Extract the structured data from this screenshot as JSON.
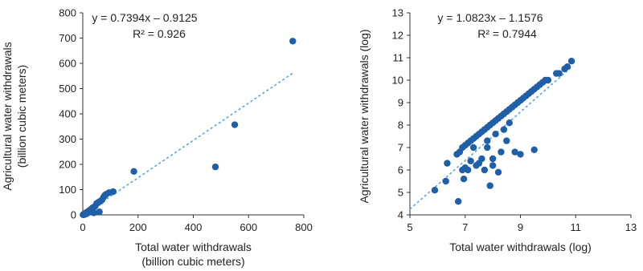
{
  "chart_data": [
    {
      "type": "scatter",
      "xlabel": [
        "Total water withdrawals",
        "(billion cubic meters)"
      ],
      "ylabel": [
        "Agricultural water withdrawals",
        "(billion cubic meters)"
      ],
      "xlim": [
        0,
        800
      ],
      "ylim": [
        0,
        800
      ],
      "xticks": [
        0,
        200,
        400,
        600,
        800
      ],
      "yticks": [
        0,
        100,
        200,
        300,
        400,
        500,
        600,
        700,
        800
      ],
      "grid": false,
      "annotation": {
        "equation": "y = 0.7394x – 0.9125",
        "r2": "R² = 0.926"
      },
      "trendline": {
        "slope": 0.7394,
        "intercept": -0.9125,
        "x_range": [
          0,
          760
        ]
      },
      "colors": {
        "point": "#1f5fa8",
        "trend": "#5aa6d6"
      },
      "x": [
        760,
        550,
        480,
        185,
        110,
        95,
        85,
        80,
        75,
        70,
        65,
        60,
        55,
        50,
        45,
        40,
        35,
        30,
        28,
        25,
        22,
        20,
        18,
        15,
        12,
        10,
        8,
        6,
        5,
        3,
        2,
        1,
        60,
        40,
        30,
        15,
        8,
        5
      ],
      "y": [
        688,
        357,
        190,
        172,
        92,
        88,
        82,
        78,
        70,
        60,
        55,
        52,
        48,
        45,
        35,
        30,
        28,
        22,
        20,
        18,
        15,
        14,
        12,
        10,
        8,
        7,
        5,
        4,
        3,
        2,
        1,
        0.5,
        12,
        8,
        12,
        5,
        2,
        1
      ]
    },
    {
      "type": "scatter",
      "xlabel": [
        "Total water withdrawals (log)"
      ],
      "ylabel": [
        "Agricultural water withdrawals (log)"
      ],
      "xlim": [
        5,
        13
      ],
      "ylim": [
        4,
        13
      ],
      "xticks": [
        5,
        7,
        9,
        11,
        13
      ],
      "yticks": [
        4,
        5,
        6,
        7,
        8,
        9,
        10,
        11,
        12,
        13
      ],
      "grid": false,
      "annotation": {
        "equation": "y = 1.0823x – 1.1576",
        "r2": "R² = 0.7944"
      },
      "trendline": {
        "slope": 1.0823,
        "intercept": -1.1576,
        "x_range": [
          5,
          10.9
        ]
      },
      "colors": {
        "point": "#1f5fa8",
        "trend": "#5aa6d6"
      },
      "x": [
        5.9,
        6.3,
        6.35,
        6.7,
        6.8,
        6.9,
        7.0,
        7.1,
        7.2,
        7.3,
        7.4,
        7.5,
        7.6,
        7.7,
        7.8,
        7.9,
        8.0,
        8.1,
        8.2,
        8.3,
        8.4,
        8.5,
        8.6,
        8.7,
        8.8,
        8.9,
        9.0,
        9.1,
        9.2,
        9.3,
        9.4,
        9.5,
        9.6,
        9.7,
        9.8,
        9.9,
        10.0,
        10.3,
        10.4,
        10.6,
        10.7,
        10.85,
        6.9,
        7.0,
        7.2,
        7.5,
        7.7,
        7.9,
        8.0,
        8.2,
        8.3,
        8.5,
        8.8,
        9.0,
        9.5,
        7.8,
        7.6,
        7.4,
        7.3,
        8.1,
        8.6,
        6.95,
        6.75,
        7.1,
        8.0,
        8.4,
        7.8
      ],
      "y": [
        5.1,
        5.5,
        6.3,
        6.7,
        6.8,
        7.0,
        7.1,
        7.2,
        7.3,
        7.4,
        7.5,
        7.6,
        7.7,
        7.8,
        7.9,
        8.0,
        8.1,
        8.2,
        8.3,
        8.4,
        8.5,
        8.6,
        8.7,
        8.8,
        8.9,
        9.0,
        9.1,
        9.2,
        9.3,
        9.4,
        9.5,
        9.6,
        9.7,
        9.8,
        9.9,
        10.0,
        10.0,
        10.3,
        10.3,
        10.5,
        10.6,
        10.85,
        6.0,
        6.1,
        6.4,
        6.3,
        6.0,
        5.3,
        6.5,
        5.9,
        6.8,
        7.3,
        6.8,
        6.7,
        6.9,
        7.0,
        6.5,
        6.2,
        7.0,
        7.6,
        8.1,
        5.6,
        4.6,
        6.0,
        6.2,
        7.8,
        7.3
      ]
    }
  ]
}
